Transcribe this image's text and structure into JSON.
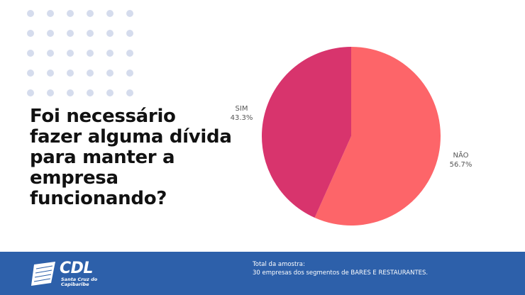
{
  "question": {
    "line1": "Foi necessário",
    "line2": "fazer alguma dívida",
    "line3": "para manter a",
    "line4": "empresa",
    "line5": "funcionando?"
  },
  "colors": {
    "nao": "#fd6569",
    "sim": "#d8346d",
    "footer": "#2d60aa",
    "dots": "#d5dced"
  },
  "chart_data": {
    "type": "pie",
    "slices": [
      {
        "label": "NÃO",
        "value": 56.7,
        "display": "56.7%",
        "color": "#fd6569"
      },
      {
        "label": "SIM",
        "value": 43.3,
        "display": "43.3%",
        "color": "#d8346d"
      }
    ]
  },
  "footer": {
    "logo": {
      "main": "CDL",
      "sub_line1": "Santa Cruz do",
      "sub_line2": "Capibaribe"
    },
    "sample_label": "Total da amostra:",
    "sample_text": "30 empresas dos segmentos de BARES E RESTAURANTES."
  }
}
